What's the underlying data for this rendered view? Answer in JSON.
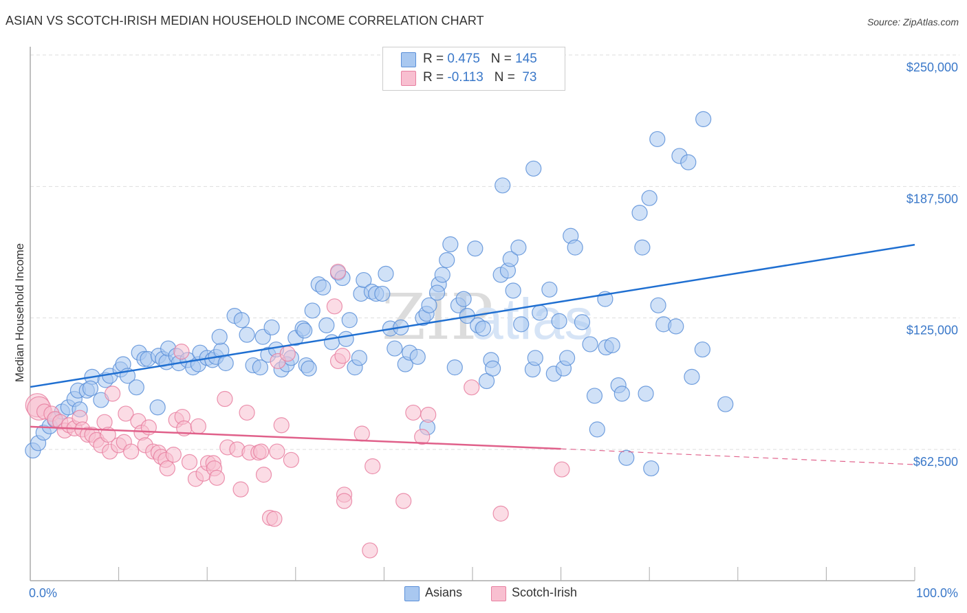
{
  "header": {
    "title": "ASIAN VS SCOTCH-IRISH MEDIAN HOUSEHOLD INCOME CORRELATION CHART",
    "source": "Source: ZipAtlas.com"
  },
  "legend": {
    "rows": [
      {
        "r_label": "R = ",
        "r_value": "0.475",
        "n_label": "N = ",
        "n_value": "145",
        "color": "#a9c8f0",
        "border": "#5a8fd8"
      },
      {
        "r_label": "R = ",
        "r_value": "-0.113",
        "n_label": "N = ",
        "n_value": " 73",
        "color": "#f8bfd0",
        "border": "#e77fa0"
      }
    ]
  },
  "bottom_legend": [
    {
      "label": "Asians",
      "color": "#a9c8f0",
      "border": "#5a8fd8"
    },
    {
      "label": "Scotch-Irish",
      "color": "#f8bfd0",
      "border": "#e77fa0"
    }
  ],
  "watermark": {
    "zip": "ZIP",
    "atlas": "atlas"
  },
  "chart_data": {
    "type": "scatter",
    "title": "ASIAN VS SCOTCH-IRISH MEDIAN HOUSEHOLD INCOME CORRELATION CHART",
    "xlabel": "",
    "ylabel": "Median Household Income",
    "xlim": [
      0,
      100
    ],
    "ylim": [
      10000,
      260000
    ],
    "x_tick_labels": [
      "0.0%",
      "100.0%"
    ],
    "x_ticks": [
      0,
      10,
      20,
      30,
      40,
      50,
      60,
      70,
      80,
      90,
      100
    ],
    "y_ticks": [
      62500,
      125000,
      187500,
      250000
    ],
    "y_tick_labels": [
      "$62,500",
      "$125,000",
      "$187,500",
      "$250,000"
    ],
    "grid": "horizontal-dashed",
    "legend_position": "top-center",
    "series": [
      {
        "name": "Asians",
        "color": "#5a8fd8",
        "fill": "#a9c8f0",
        "R": 0.475,
        "N": 145,
        "trend": {
          "x": [
            0,
            100
          ],
          "y": [
            92200,
            159800
          ],
          "style": "solid",
          "color": "#1f6fd1"
        },
        "points": [
          [
            0.3,
            62000
          ],
          [
            0.9,
            65500
          ],
          [
            1.5,
            70500
          ],
          [
            2.2,
            73500
          ],
          [
            2.8,
            76500
          ],
          [
            3.6,
            80500
          ],
          [
            4.3,
            82500
          ],
          [
            5.0,
            86500
          ],
          [
            5.6,
            81500
          ],
          [
            5.4,
            90500
          ],
          [
            6.4,
            90500
          ],
          [
            7.0,
            97000
          ],
          [
            6.8,
            91500
          ],
          [
            8.0,
            86000
          ],
          [
            8.5,
            95500
          ],
          [
            9.0,
            97500
          ],
          [
            10.2,
            100500
          ],
          [
            10.5,
            103000
          ],
          [
            11.0,
            97500
          ],
          [
            12.0,
            92000
          ],
          [
            12.3,
            108500
          ],
          [
            12.9,
            105500
          ],
          [
            13.3,
            105500
          ],
          [
            14.5,
            107000
          ],
          [
            15.0,
            105500
          ],
          [
            15.4,
            104000
          ],
          [
            14.4,
            82500
          ],
          [
            15.6,
            110500
          ],
          [
            16.5,
            107000
          ],
          [
            16.8,
            103500
          ],
          [
            17.8,
            105000
          ],
          [
            18.4,
            101500
          ],
          [
            19.0,
            103000
          ],
          [
            19.2,
            108500
          ],
          [
            20.0,
            106000
          ],
          [
            20.6,
            105000
          ],
          [
            21.0,
            106500
          ],
          [
            21.6,
            109500
          ],
          [
            21.4,
            116000
          ],
          [
            22.1,
            103500
          ],
          [
            23.1,
            126000
          ],
          [
            23.9,
            124000
          ],
          [
            24.5,
            117000
          ],
          [
            25.2,
            102500
          ],
          [
            26.0,
            101500
          ],
          [
            26.3,
            116000
          ],
          [
            26.9,
            107500
          ],
          [
            27.3,
            120500
          ],
          [
            27.8,
            110000
          ],
          [
            28.4,
            100500
          ],
          [
            29.0,
            103000
          ],
          [
            29.5,
            106000
          ],
          [
            30.0,
            115500
          ],
          [
            30.8,
            120000
          ],
          [
            31.2,
            102500
          ],
          [
            31.9,
            128500
          ],
          [
            31.5,
            101000
          ],
          [
            32.6,
            141000
          ],
          [
            33.1,
            139500
          ],
          [
            31.0,
            119000
          ],
          [
            33.5,
            121500
          ],
          [
            34.1,
            113500
          ],
          [
            34.8,
            146500
          ],
          [
            35.3,
            144000
          ],
          [
            35.7,
            115000
          ],
          [
            36.1,
            124000
          ],
          [
            37.4,
            136500
          ],
          [
            36.7,
            101500
          ],
          [
            37.2,
            106000
          ],
          [
            37.7,
            143000
          ],
          [
            38.6,
            137500
          ],
          [
            39.1,
            136500
          ],
          [
            39.8,
            136500
          ],
          [
            40.2,
            146000
          ],
          [
            40.7,
            120000
          ],
          [
            41.2,
            110500
          ],
          [
            41.9,
            120500
          ],
          [
            42.4,
            103000
          ],
          [
            42.9,
            108500
          ],
          [
            43.8,
            106500
          ],
          [
            44.4,
            125000
          ],
          [
            44.8,
            127000
          ],
          [
            45.1,
            131000
          ],
          [
            44.9,
            73000
          ],
          [
            46.2,
            141000
          ],
          [
            46.6,
            145500
          ],
          [
            47.1,
            152500
          ],
          [
            47.5,
            160000
          ],
          [
            46.0,
            137000
          ],
          [
            48.0,
            101500
          ],
          [
            48.4,
            131000
          ],
          [
            49.0,
            134000
          ],
          [
            49.4,
            126000
          ],
          [
            50.3,
            158000
          ],
          [
            50.6,
            121500
          ],
          [
            51.2,
            120000
          ],
          [
            51.6,
            95000
          ],
          [
            52.1,
            105000
          ],
          [
            52.3,
            101000
          ],
          [
            53.2,
            145500
          ],
          [
            53.4,
            188000
          ],
          [
            54.0,
            147500
          ],
          [
            54.3,
            153000
          ],
          [
            55.2,
            158500
          ],
          [
            54.6,
            138000
          ],
          [
            55.5,
            122000
          ],
          [
            56.8,
            100500
          ],
          [
            57.1,
            106000
          ],
          [
            56.9,
            196000
          ],
          [
            57.6,
            127500
          ],
          [
            58.7,
            138500
          ],
          [
            59.2,
            98500
          ],
          [
            60.3,
            101000
          ],
          [
            60.7,
            106000
          ],
          [
            59.8,
            123500
          ],
          [
            61.1,
            164000
          ],
          [
            61.6,
            158500
          ],
          [
            62.4,
            123000
          ],
          [
            63.3,
            112500
          ],
          [
            63.8,
            88000
          ],
          [
            64.1,
            72000
          ],
          [
            65.0,
            134000
          ],
          [
            65.1,
            111000
          ],
          [
            65.8,
            112000
          ],
          [
            66.5,
            93000
          ],
          [
            66.9,
            89000
          ],
          [
            67.4,
            58500
          ],
          [
            68.9,
            175000
          ],
          [
            69.2,
            158500
          ],
          [
            69.6,
            89000
          ],
          [
            70.0,
            182000
          ],
          [
            70.9,
            210000
          ],
          [
            71.6,
            122000
          ],
          [
            73.4,
            202000
          ],
          [
            74.4,
            199000
          ],
          [
            76.1,
            219500
          ],
          [
            78.6,
            84000
          ],
          [
            76.0,
            110000
          ],
          [
            70.2,
            53500
          ],
          [
            71.0,
            131000
          ],
          [
            73.0,
            121000
          ],
          [
            74.8,
            97000
          ]
        ]
      },
      {
        "name": "Scotch-Irish",
        "color": "#e77fa0",
        "fill": "#f8bfd0",
        "R": -0.113,
        "N": 73,
        "trend": {
          "x": [
            0,
            60,
            100
          ],
          "y": [
            73300,
            62800,
            55300
          ],
          "style": "solid-then-dashed",
          "solid_until": 60,
          "color": "#e0608a"
        },
        "points": [
          [
            0.8,
            83500
          ],
          [
            1.0,
            82000
          ],
          [
            1.6,
            80500
          ],
          [
            2.4,
            79500
          ],
          [
            2.8,
            77000
          ],
          [
            3.4,
            75500
          ],
          [
            3.9,
            71500
          ],
          [
            4.4,
            74000
          ],
          [
            5.0,
            72500
          ],
          [
            5.6,
            77500
          ],
          [
            5.9,
            72000
          ],
          [
            6.5,
            69500
          ],
          [
            7.0,
            69500
          ],
          [
            7.5,
            67000
          ],
          [
            8.0,
            64500
          ],
          [
            8.4,
            75500
          ],
          [
            8.8,
            69500
          ],
          [
            9.0,
            61500
          ],
          [
            9.3,
            89000
          ],
          [
            10.0,
            64500
          ],
          [
            10.6,
            66000
          ],
          [
            10.8,
            79500
          ],
          [
            11.4,
            61500
          ],
          [
            12.2,
            76000
          ],
          [
            12.6,
            70500
          ],
          [
            13.0,
            64500
          ],
          [
            13.4,
            73000
          ],
          [
            13.9,
            61500
          ],
          [
            14.5,
            61000
          ],
          [
            14.8,
            59000
          ],
          [
            15.3,
            57500
          ],
          [
            15.5,
            53500
          ],
          [
            16.2,
            60000
          ],
          [
            16.5,
            76500
          ],
          [
            17.2,
            78000
          ],
          [
            17.4,
            72500
          ],
          [
            17.1,
            109000
          ],
          [
            18.0,
            56500
          ],
          [
            18.7,
            48500
          ],
          [
            19.0,
            73500
          ],
          [
            19.6,
            51000
          ],
          [
            20.1,
            56000
          ],
          [
            20.7,
            56000
          ],
          [
            20.8,
            53500
          ],
          [
            21.1,
            49000
          ],
          [
            22.0,
            86500
          ],
          [
            22.3,
            63500
          ],
          [
            23.4,
            62500
          ],
          [
            23.8,
            43500
          ],
          [
            24.5,
            80000
          ],
          [
            24.8,
            61000
          ],
          [
            25.8,
            61000
          ],
          [
            26.1,
            61500
          ],
          [
            26.4,
            50500
          ],
          [
            27.1,
            30000
          ],
          [
            27.6,
            29500
          ],
          [
            27.9,
            61500
          ],
          [
            28.0,
            104500
          ],
          [
            28.4,
            74000
          ],
          [
            29.1,
            108000
          ],
          [
            29.5,
            57500
          ],
          [
            34.4,
            130500
          ],
          [
            34.8,
            104500
          ],
          [
            35.3,
            107000
          ],
          [
            35.5,
            41000
          ],
          [
            35.5,
            38000
          ],
          [
            37.5,
            70000
          ],
          [
            38.4,
            14500
          ],
          [
            38.7,
            54500
          ],
          [
            42.2,
            38000
          ],
          [
            43.3,
            80000
          ],
          [
            44.3,
            68500
          ],
          [
            45.0,
            79000
          ],
          [
            49.9,
            92000
          ],
          [
            53.2,
            32000
          ],
          [
            60.1,
            53000
          ],
          [
            34.8,
            147000
          ]
        ]
      }
    ]
  }
}
